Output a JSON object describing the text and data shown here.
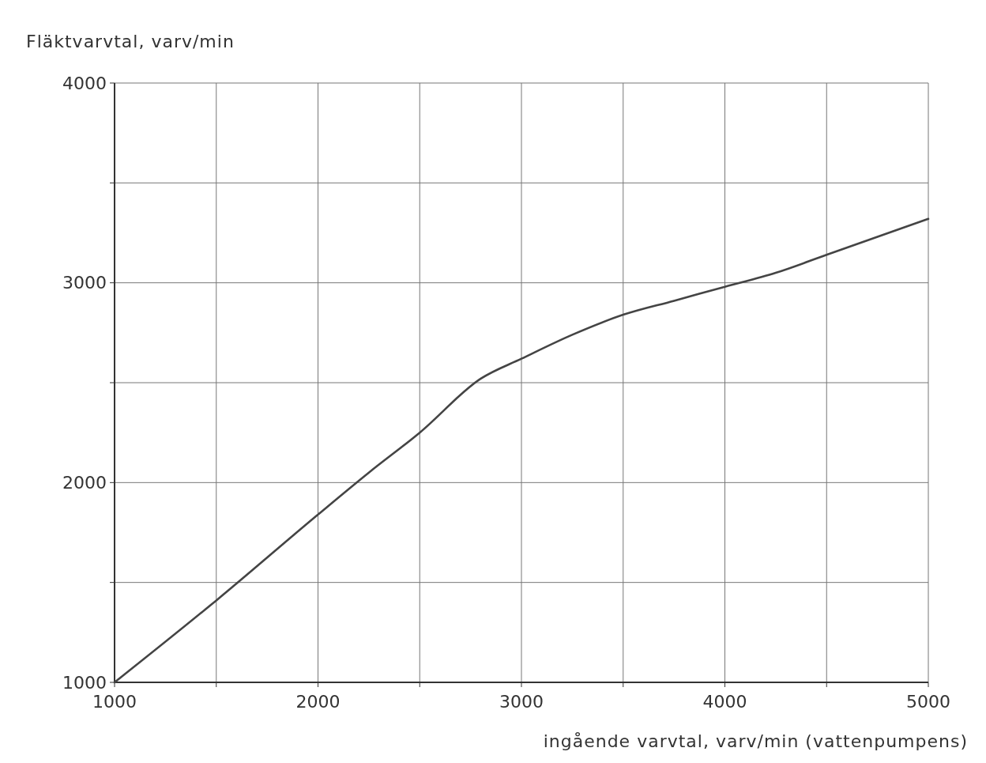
{
  "chart_data": {
    "type": "line",
    "ylabel": "Fläktvarvtal, varv/min",
    "xlabel": "ingående varvtal, varv/min (vattenpumpens)",
    "x": [
      1000,
      1500,
      2000,
      2250,
      2500,
      2800,
      3000,
      3250,
      3500,
      3750,
      4000,
      4250,
      4500,
      5000
    ],
    "series": [
      {
        "color": "#444444",
        "values": [
          1000,
          1410,
          1840,
          2050,
          2250,
          2520,
          2620,
          2740,
          2840,
          2910,
          2980,
          3050,
          3140,
          3320
        ]
      }
    ],
    "xlim": [
      1000,
      5000
    ],
    "ylim": [
      1000,
      4000
    ],
    "xticks": [
      1000,
      {
        "value": 1500,
        "label": null
      },
      2000,
      {
        "value": 2500,
        "label": null
      },
      3000,
      {
        "value": 3500,
        "label": null
      },
      4000,
      {
        "value": 4500,
        "label": null
      },
      5000
    ],
    "yticks": [
      1000,
      {
        "value": 1500,
        "label": null
      },
      2000,
      {
        "value": 2500,
        "label": null
      },
      3000,
      {
        "value": 3500,
        "label": null
      },
      4000
    ],
    "grid": true,
    "marker": "none",
    "line_style": "solid"
  }
}
